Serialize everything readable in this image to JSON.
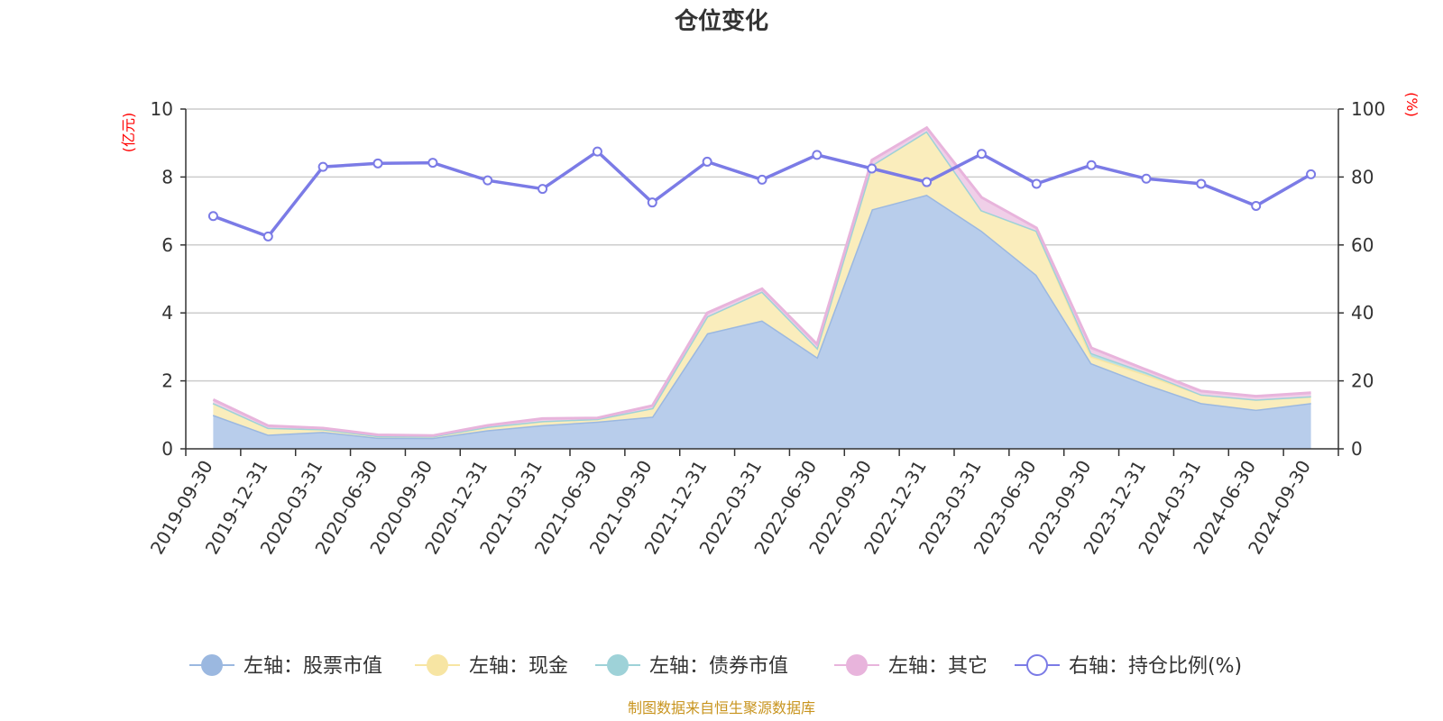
{
  "chart_data": {
    "type": "area",
    "title": "仓位变化",
    "left_axis_unit": "(亿元)",
    "right_axis_unit": "(%)",
    "left_ylim": [
      0,
      10
    ],
    "left_yticks": [
      0,
      2,
      4,
      6,
      8,
      10
    ],
    "right_ylim": [
      0,
      100
    ],
    "right_yticks": [
      0,
      20,
      40,
      60,
      80,
      100
    ],
    "grid": true,
    "legend_position": "bottom",
    "categories": [
      "2019-09-30",
      "2019-12-31",
      "2020-03-31",
      "2020-06-30",
      "2020-09-30",
      "2020-12-31",
      "2021-03-31",
      "2021-06-30",
      "2021-09-30",
      "2021-12-31",
      "2022-03-31",
      "2022-06-30",
      "2022-09-30",
      "2022-12-31",
      "2023-03-31",
      "2023-06-30",
      "2023-09-30",
      "2023-12-31",
      "2024-03-31",
      "2024-06-30",
      "2024-09-30"
    ],
    "series": [
      {
        "name": "左轴：股票市值",
        "axis": "left",
        "stack": "total",
        "color": "#9bb8e0",
        "fill": "#b8cdeb",
        "values": [
          1.0,
          0.42,
          0.5,
          0.33,
          0.32,
          0.55,
          0.7,
          0.8,
          0.95,
          3.4,
          3.78,
          2.7,
          7.05,
          7.48,
          6.42,
          5.12,
          2.52,
          1.9,
          1.35,
          1.15,
          1.35
        ]
      },
      {
        "name": "左轴：现金",
        "axis": "left",
        "stack": "total",
        "color": "#f7e5a3",
        "fill": "#faedbc",
        "values": [
          0.35,
          0.2,
          0.08,
          0.05,
          0.05,
          0.1,
          0.12,
          0.08,
          0.25,
          0.5,
          0.85,
          0.28,
          1.3,
          1.87,
          0.6,
          1.3,
          0.2,
          0.28,
          0.25,
          0.3,
          0.2
        ]
      },
      {
        "name": "左轴：债券市值",
        "axis": "left",
        "stack": "total",
        "color": "#9ed2d8",
        "fill": "#b9e0e3",
        "values": [
          0,
          0,
          0,
          0,
          0,
          0,
          0,
          0,
          0,
          0,
          0,
          0,
          0,
          0,
          0,
          0,
          0.1,
          0.07,
          0,
          0,
          0
        ]
      },
      {
        "name": "左轴：其它",
        "axis": "left",
        "stack": "total",
        "color": "#e8b4dc",
        "fill": "#f0cfe8",
        "values": [
          0.1,
          0.06,
          0.03,
          0.03,
          0.02,
          0.04,
          0.07,
          0.03,
          0.07,
          0.1,
          0.08,
          0.1,
          0.15,
          0.1,
          0.38,
          0.08,
          0.15,
          0.08,
          0.1,
          0.1,
          0.1
        ]
      },
      {
        "name": "右轴：持仓比例(%)",
        "axis": "right",
        "type": "line",
        "color": "#7b7be6",
        "values": [
          68.5,
          62.5,
          83,
          84,
          84.2,
          79,
          76.5,
          87.5,
          72.5,
          84.5,
          79.2,
          86.5,
          82.5,
          78.5,
          86.8,
          78,
          83.5,
          79.5,
          78,
          71.5,
          80.8
        ]
      }
    ],
    "source": "制图数据来自恒生聚源数据库"
  }
}
